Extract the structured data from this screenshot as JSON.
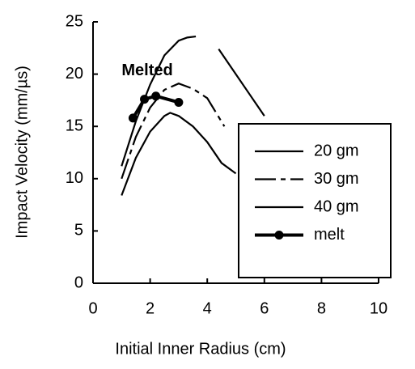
{
  "chart_data": {
    "type": "line",
    "xlabel": "Initial Inner Radius (cm)",
    "ylabel": "Impact Velocity (mm/µs)",
    "annotation": "Melted",
    "xlim": [
      0,
      10
    ],
    "xticks": [
      0,
      2,
      4,
      6,
      8,
      10
    ],
    "ylim": [
      0,
      25
    ],
    "yticks": [
      0,
      5,
      10,
      15,
      20,
      25
    ],
    "series": [
      {
        "name": "20 gm",
        "color": "#000000",
        "style": "solid",
        "x": [
          1,
          1.5,
          2,
          2.5,
          3,
          3.3,
          3.6,
          4,
          4.4,
          5,
          5.5,
          6
        ],
        "values": [
          11.2,
          15.5,
          19,
          21.8,
          23.2,
          23.5,
          23.6,
          null,
          22.4,
          20,
          18,
          16
        ]
      },
      {
        "name": "30 gm",
        "color": "#000000",
        "style": "dashed",
        "x": [
          1,
          1.5,
          2,
          2.5,
          3,
          3.5,
          4,
          4.6
        ],
        "values": [
          10,
          14,
          16.8,
          18.5,
          19.1,
          18.6,
          17.7,
          15
        ]
      },
      {
        "name": "40 gm",
        "color": "#000000",
        "style": "solid",
        "x": [
          1,
          1.5,
          2,
          2.5,
          2.7,
          3,
          3.5,
          4,
          4.5,
          5
        ],
        "values": [
          8.4,
          12,
          14.5,
          16,
          16.3,
          16,
          15,
          13.5,
          11.5,
          10.5
        ]
      },
      {
        "name": "melt",
        "color": "#000000",
        "style": "bold",
        "marker": "circle",
        "x": [
          1.4,
          1.8,
          2.2,
          3.0
        ],
        "values": [
          15.8,
          17.6,
          17.9,
          17.3
        ]
      }
    ]
  }
}
